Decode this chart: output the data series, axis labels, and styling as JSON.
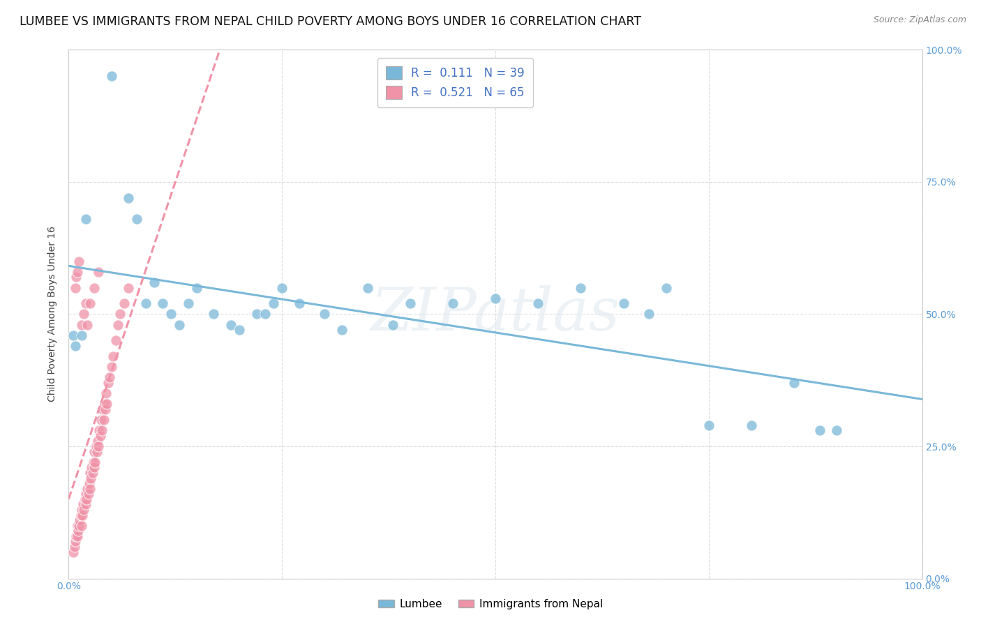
{
  "title": "LUMBEE VS IMMIGRANTS FROM NEPAL CHILD POVERTY AMONG BOYS UNDER 16 CORRELATION CHART",
  "source": "Source: ZipAtlas.com",
  "ylabel": "Child Poverty Among Boys Under 16",
  "xlim": [
    0,
    1
  ],
  "ylim": [
    0,
    1
  ],
  "lumbee_color": "#7ab8d9",
  "nepal_color": "#f093a8",
  "lumbee_R": 0.111,
  "lumbee_N": 39,
  "nepal_R": 0.521,
  "nepal_N": 65,
  "legend_label_lumbee": "Lumbee",
  "legend_label_nepal": "Immigrants from Nepal",
  "background_color": "#ffffff",
  "grid_color": "#dddddd",
  "title_fontsize": 12.5,
  "axis_label_fontsize": 10,
  "tick_fontsize": 10,
  "legend_fontsize": 12,
  "lumbee_x": [
    0.02,
    0.05,
    0.07,
    0.08,
    0.09,
    0.1,
    0.11,
    0.12,
    0.13,
    0.14,
    0.15,
    0.17,
    0.19,
    0.2,
    0.22,
    0.23,
    0.24,
    0.25,
    0.27,
    0.3,
    0.32,
    0.35,
    0.38,
    0.4,
    0.45,
    0.5,
    0.55,
    0.6,
    0.65,
    0.68,
    0.7,
    0.75,
    0.8,
    0.85,
    0.88,
    0.9,
    0.005,
    0.008,
    0.015
  ],
  "lumbee_y": [
    0.68,
    0.95,
    0.72,
    0.68,
    0.52,
    0.56,
    0.52,
    0.5,
    0.48,
    0.52,
    0.55,
    0.5,
    0.48,
    0.47,
    0.5,
    0.5,
    0.52,
    0.55,
    0.52,
    0.5,
    0.47,
    0.55,
    0.48,
    0.52,
    0.52,
    0.53,
    0.52,
    0.55,
    0.52,
    0.5,
    0.55,
    0.29,
    0.29,
    0.37,
    0.28,
    0.28,
    0.46,
    0.44,
    0.46
  ],
  "nepal_x": [
    0.005,
    0.007,
    0.008,
    0.009,
    0.01,
    0.01,
    0.011,
    0.012,
    0.013,
    0.014,
    0.015,
    0.015,
    0.016,
    0.017,
    0.018,
    0.019,
    0.02,
    0.02,
    0.021,
    0.022,
    0.023,
    0.024,
    0.025,
    0.025,
    0.026,
    0.027,
    0.028,
    0.029,
    0.03,
    0.03,
    0.031,
    0.032,
    0.033,
    0.034,
    0.035,
    0.036,
    0.037,
    0.038,
    0.039,
    0.04,
    0.041,
    0.042,
    0.043,
    0.044,
    0.045,
    0.046,
    0.048,
    0.05,
    0.052,
    0.055,
    0.058,
    0.06,
    0.065,
    0.07,
    0.008,
    0.009,
    0.01,
    0.012,
    0.015,
    0.018,
    0.02,
    0.022,
    0.025,
    0.03,
    0.035
  ],
  "nepal_y": [
    0.05,
    0.06,
    0.07,
    0.08,
    0.08,
    0.1,
    0.09,
    0.1,
    0.11,
    0.12,
    0.1,
    0.13,
    0.12,
    0.14,
    0.13,
    0.15,
    0.14,
    0.16,
    0.15,
    0.17,
    0.16,
    0.18,
    0.17,
    0.2,
    0.19,
    0.21,
    0.2,
    0.22,
    0.21,
    0.24,
    0.22,
    0.25,
    0.24,
    0.26,
    0.25,
    0.28,
    0.27,
    0.3,
    0.28,
    0.32,
    0.3,
    0.33,
    0.32,
    0.35,
    0.33,
    0.37,
    0.38,
    0.4,
    0.42,
    0.45,
    0.48,
    0.5,
    0.52,
    0.55,
    0.55,
    0.57,
    0.58,
    0.6,
    0.48,
    0.5,
    0.52,
    0.48,
    0.52,
    0.55,
    0.58
  ]
}
